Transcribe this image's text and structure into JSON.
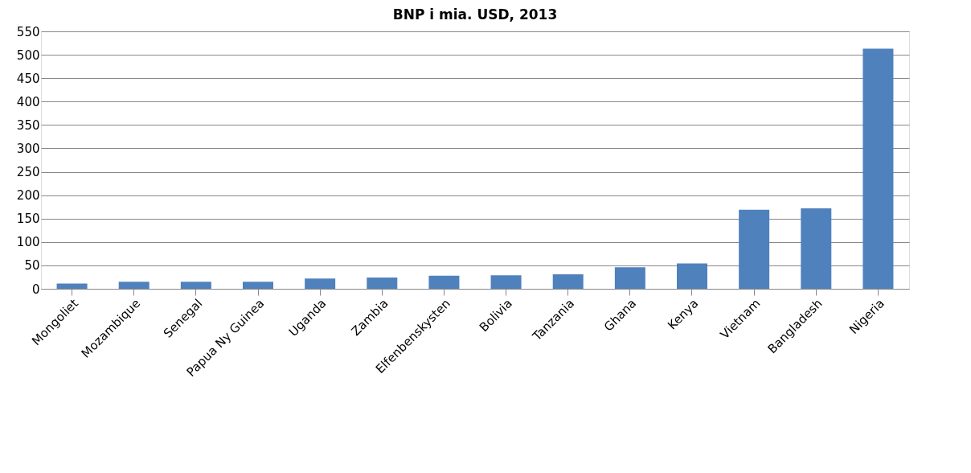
{
  "chart_data": {
    "type": "bar",
    "title": "BNP i mia. USD, 2013",
    "categories": [
      "Mongoliet",
      "Mozambique",
      "Senegal",
      "Papua Ny Guinea",
      "Uganda",
      "Zambia",
      "Elfenbenskysten",
      "Bolivia",
      "Tanzania",
      "Ghana",
      "Kenya",
      "Vietnam",
      "Bangladesh",
      "Nigeria"
    ],
    "values": [
      11,
      15,
      15,
      15,
      22,
      24,
      28,
      29,
      31,
      46,
      54,
      169,
      172,
      513
    ],
    "color": "#4f81bd",
    "ylim": [
      0,
      550
    ],
    "yticks": [
      0,
      50,
      100,
      150,
      200,
      250,
      300,
      350,
      400,
      450,
      500,
      550
    ],
    "grid": "y"
  }
}
